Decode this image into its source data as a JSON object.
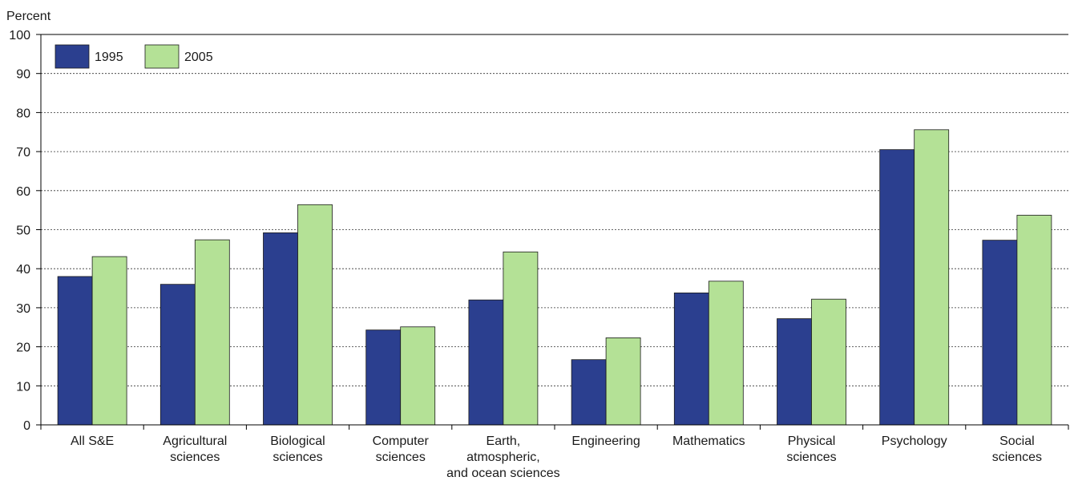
{
  "chart_data": {
    "type": "bar",
    "ylabel": "Percent",
    "xlabel": "",
    "ylim": [
      0,
      100
    ],
    "yticks": [
      0,
      10,
      20,
      30,
      40,
      50,
      60,
      70,
      80,
      90,
      100
    ],
    "grid": "horizontal dashed",
    "legend_position": "top-left",
    "categories": [
      [
        "All S&E"
      ],
      [
        "Agricultural",
        "sciences"
      ],
      [
        "Biological",
        "sciences"
      ],
      [
        "Computer",
        "sciences"
      ],
      [
        "Earth,",
        "atmospheric,",
        "and ocean sciences"
      ],
      [
        "Engineering"
      ],
      [
        "Mathematics"
      ],
      [
        "Physical",
        "sciences"
      ],
      [
        "Psychology"
      ],
      [
        "Social",
        "sciences"
      ]
    ],
    "series": [
      {
        "name": "1995",
        "color": "#2b3f8f",
        "values": [
          38,
          36,
          49.2,
          24.3,
          32,
          16.7,
          33.8,
          27.2,
          70.5,
          47.3
        ]
      },
      {
        "name": "2005",
        "color": "#b4e196",
        "values": [
          43.1,
          47.4,
          56.4,
          25.1,
          44.3,
          22.3,
          36.8,
          32.2,
          75.6,
          53.7
        ]
      }
    ]
  }
}
